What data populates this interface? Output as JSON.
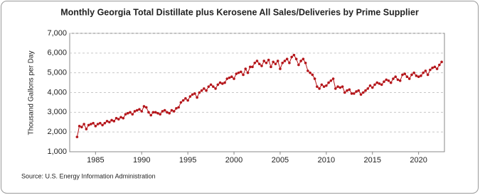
{
  "chart_data": {
    "type": "line",
    "title": "Monthly Georgia Total Distillate plus Kerosene All Sales/Deliveries by Prime Supplier",
    "y_label": "Thousand Gallons per Day",
    "source": "Source: U.S. Energy Information Administration",
    "x": [
      1983,
      1983.25,
      1983.5,
      1983.75,
      1984,
      1984.25,
      1984.5,
      1984.75,
      1985,
      1985.25,
      1985.5,
      1985.75,
      1986,
      1986.25,
      1986.5,
      1986.75,
      1987,
      1987.25,
      1987.5,
      1987.75,
      1988,
      1988.25,
      1988.5,
      1988.75,
      1989,
      1989.25,
      1989.5,
      1989.75,
      1990,
      1990.25,
      1990.5,
      1990.75,
      1991,
      1991.25,
      1991.5,
      1991.75,
      1992,
      1992.25,
      1992.5,
      1992.75,
      1993,
      1993.25,
      1993.5,
      1993.75,
      1994,
      1994.25,
      1994.5,
      1994.75,
      1995,
      1995.25,
      1995.5,
      1995.75,
      1996,
      1996.25,
      1996.5,
      1996.75,
      1997,
      1997.25,
      1997.5,
      1997.75,
      1998,
      1998.25,
      1998.5,
      1998.75,
      1999,
      1999.25,
      1999.5,
      1999.75,
      2000,
      2000.25,
      2000.5,
      2000.75,
      2001,
      2001.25,
      2001.5,
      2001.75,
      2002,
      2002.25,
      2002.5,
      2002.75,
      2003,
      2003.25,
      2003.5,
      2003.75,
      2004,
      2004.25,
      2004.5,
      2004.75,
      2005,
      2005.25,
      2005.5,
      2005.75,
      2006,
      2006.25,
      2006.5,
      2006.75,
      2007,
      2007.25,
      2007.5,
      2007.75,
      2008,
      2008.25,
      2008.5,
      2008.75,
      2009,
      2009.25,
      2009.5,
      2009.75,
      2010,
      2010.25,
      2010.5,
      2010.75,
      2011,
      2011.25,
      2011.5,
      2011.75,
      2012,
      2012.25,
      2012.5,
      2012.75,
      2013,
      2013.25,
      2013.5,
      2013.75,
      2014,
      2014.25,
      2014.5,
      2014.75,
      2015,
      2015.25,
      2015.5,
      2015.75,
      2016,
      2016.25,
      2016.5,
      2016.75,
      2017,
      2017.25,
      2017.5,
      2017.75,
      2018,
      2018.25,
      2018.5,
      2018.75,
      2019,
      2019.25,
      2019.5,
      2019.75,
      2020,
      2020.25,
      2020.5,
      2020.75,
      2021,
      2021.25,
      2021.5,
      2021.75,
      2022,
      2022.25,
      2022.5
    ],
    "series": [
      {
        "name": "Georgia Total Distillate plus Kerosene",
        "color": "#b5161b",
        "values": [
          1750,
          2300,
          2250,
          2400,
          2150,
          2350,
          2400,
          2450,
          2300,
          2400,
          2450,
          2350,
          2450,
          2550,
          2500,
          2600,
          2550,
          2700,
          2650,
          2750,
          2700,
          2900,
          2950,
          3000,
          2900,
          3050,
          3100,
          3150,
          3050,
          3300,
          3250,
          3000,
          2850,
          3000,
          3000,
          2950,
          2900,
          3050,
          3100,
          3000,
          2950,
          3100,
          3050,
          3200,
          3250,
          3500,
          3600,
          3700,
          3600,
          3800,
          3900,
          3950,
          3750,
          4000,
          4100,
          4200,
          4100,
          4300,
          4400,
          4300,
          4200,
          4400,
          4500,
          4450,
          4500,
          4700,
          4750,
          4800,
          4700,
          4950,
          5000,
          5050,
          4900,
          5200,
          5000,
          5300,
          5300,
          5500,
          5600,
          5450,
          5350,
          5600,
          5500,
          5650,
          5300,
          5550,
          5450,
          5600,
          5200,
          5500,
          5600,
          5700,
          5500,
          5800,
          5900,
          5700,
          5400,
          5600,
          5700,
          5500,
          5100,
          5000,
          4900,
          4700,
          4300,
          4200,
          4400,
          4300,
          4350,
          4500,
          4600,
          4700,
          4200,
          4300,
          4250,
          4300,
          4000,
          4100,
          4150,
          3950,
          3950,
          4050,
          4100,
          3900,
          4000,
          4100,
          4200,
          4350,
          4250,
          4400,
          4500,
          4450,
          4400,
          4550,
          4650,
          4600,
          4500,
          4700,
          4800,
          4650,
          4600,
          4900,
          4950,
          4800,
          4700,
          4900,
          5000,
          4850,
          4800,
          4850,
          5000,
          5100,
          4900,
          5150,
          5250,
          5300,
          5200,
          5400,
          5550
        ]
      }
    ],
    "xlim": [
      1982.2,
      2022.8
    ],
    "xticks": [
      1985,
      1990,
      1995,
      2000,
      2005,
      2010,
      2015,
      2020
    ],
    "ylim": [
      1000,
      7000
    ],
    "yticks": [
      {
        "value": 1000,
        "label": "1,000"
      },
      {
        "value": 2000,
        "label": "2,000"
      },
      {
        "value": 3000,
        "label": "3,000"
      },
      {
        "value": 4000,
        "label": "4,000"
      },
      {
        "value": 5000,
        "label": "5,000"
      },
      {
        "value": 6000,
        "label": "6,000"
      },
      {
        "value": 7000,
        "label": "7,000"
      }
    ],
    "grid": true
  }
}
